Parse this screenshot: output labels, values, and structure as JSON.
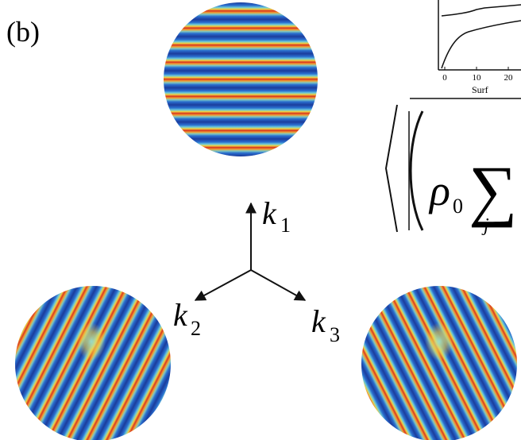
{
  "panel_label": "(b)",
  "vectors": [
    {
      "symbol": "k",
      "subscript": "1"
    },
    {
      "symbol": "k",
      "subscript": "2"
    },
    {
      "symbol": "k",
      "subscript": "3"
    }
  ],
  "inset": {
    "xticks": [
      "0",
      "10",
      "20"
    ],
    "xlabel": "Surf"
  },
  "formula": {
    "rho": "ρ",
    "rho_sub": "0",
    "sum": "∑",
    "index": "j"
  }
}
